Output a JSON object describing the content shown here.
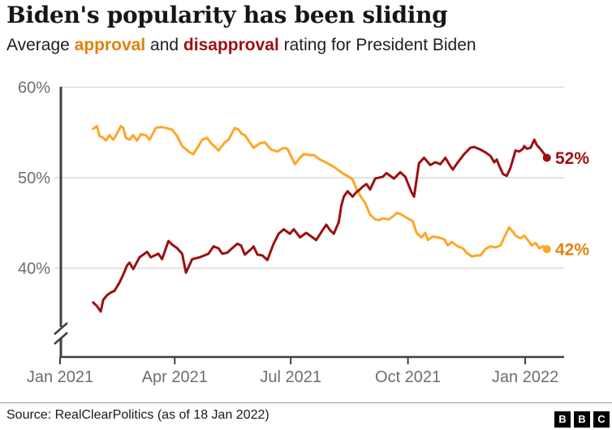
{
  "header": {
    "title": "Biden's popularity has been sliding",
    "subtitle": {
      "prefix": "Average ",
      "approval_word": "approval",
      "middle": " and ",
      "disapproval_word": "disapproval",
      "suffix": " rating for President Biden"
    }
  },
  "chart_data": {
    "type": "line",
    "title": "Biden's popularity has been sliding",
    "subtitle": "Average approval and disapproval rating for President Biden",
    "xlabel": "",
    "ylabel": "",
    "x_unit": "days since 27 Jan 2021 (series start), ending 18 Jan 2022",
    "ylim": [
      35,
      60
    ],
    "y_axis_break": true,
    "grid": true,
    "legend_position": "inline-subtitle-and-end-labels",
    "colors": {
      "approval_line": "#ffa626",
      "approval_text": "#e0830c",
      "disapproval_line": "#9b1012",
      "disapproval_text": "#9b0f12",
      "axis": "#3f3f42",
      "gridline": "#d9d9d9",
      "axis_label": "#6e6e6e"
    },
    "y_ticks": [
      {
        "label": "60%",
        "value": 60
      },
      {
        "label": "50%",
        "value": 50
      },
      {
        "label": "40%",
        "value": 40
      }
    ],
    "x_ticks": [
      {
        "label": "Jan 2021",
        "day": 0
      },
      {
        "label": "Apr 2021",
        "day": 90
      },
      {
        "label": "Jul 2021",
        "day": 181
      },
      {
        "label": "Oct 2021",
        "day": 273
      },
      {
        "label": "Jan 2022",
        "day": 365
      }
    ],
    "series": [
      {
        "name": "Approval",
        "color": "#ffa626",
        "label_color": "#e0830c",
        "end_label": "42%",
        "end_value": 42,
        "points": [
          [
            0,
            55.4
          ],
          [
            3,
            55.7
          ],
          [
            5,
            54.6
          ],
          [
            8,
            54.4
          ],
          [
            10,
            54.1
          ],
          [
            13,
            54.7
          ],
          [
            16,
            54.2
          ],
          [
            18,
            54.6
          ],
          [
            22,
            55.7
          ],
          [
            24,
            55.5
          ],
          [
            26,
            54.4
          ],
          [
            29,
            54.2
          ],
          [
            32,
            54.7
          ],
          [
            35,
            54.1
          ],
          [
            38,
            54.8
          ],
          [
            42,
            54.7
          ],
          [
            45,
            54.2
          ],
          [
            50,
            55.5
          ],
          [
            54,
            55.6
          ],
          [
            58,
            55.5
          ],
          [
            63,
            55.3
          ],
          [
            67,
            54.6
          ],
          [
            71,
            53.5
          ],
          [
            77,
            52.8
          ],
          [
            80,
            52.6
          ],
          [
            84,
            53.5
          ],
          [
            87,
            54.2
          ],
          [
            91,
            54.4
          ],
          [
            94,
            53.8
          ],
          [
            98,
            53.3
          ],
          [
            100,
            53.0
          ],
          [
            105,
            53.9
          ],
          [
            108,
            54.2
          ],
          [
            113,
            55.5
          ],
          [
            116,
            55.3
          ],
          [
            119,
            54.8
          ],
          [
            121,
            54.7
          ],
          [
            128,
            53.3
          ],
          [
            133,
            53.8
          ],
          [
            137,
            53.9
          ],
          [
            142,
            53.1
          ],
          [
            147,
            52.9
          ],
          [
            152,
            53.3
          ],
          [
            155,
            53.2
          ],
          [
            161,
            51.5
          ],
          [
            165,
            52.2
          ],
          [
            168,
            52.6
          ],
          [
            173,
            52.5
          ],
          [
            176,
            52.5
          ],
          [
            181,
            52.0
          ],
          [
            184,
            51.8
          ],
          [
            188,
            51.5
          ],
          [
            192,
            51.2
          ],
          [
            196,
            50.8
          ],
          [
            200,
            50.4
          ],
          [
            204,
            50.1
          ],
          [
            207,
            49.8
          ],
          [
            210,
            48.8
          ],
          [
            214,
            47.8
          ],
          [
            217,
            47.2
          ],
          [
            221,
            45.9
          ],
          [
            225,
            45.4
          ],
          [
            228,
            45.3
          ],
          [
            231,
            45.5
          ],
          [
            236,
            45.4
          ],
          [
            240,
            45.8
          ],
          [
            242,
            46.1
          ],
          [
            245,
            46.0
          ],
          [
            251,
            45.5
          ],
          [
            255,
            45.2
          ],
          [
            258,
            43.9
          ],
          [
            262,
            43.4
          ],
          [
            265,
            43.9
          ],
          [
            267,
            43.1
          ],
          [
            271,
            43.5
          ],
          [
            275,
            43.4
          ],
          [
            280,
            43.2
          ],
          [
            283,
            42.5
          ],
          [
            286,
            42.9
          ],
          [
            291,
            42.4
          ],
          [
            295,
            42.2
          ],
          [
            298,
            41.7
          ],
          [
            302,
            41.3
          ],
          [
            306,
            41.4
          ],
          [
            309,
            41.4
          ],
          [
            313,
            42.1
          ],
          [
            317,
            42.4
          ],
          [
            321,
            42.3
          ],
          [
            325,
            42.5
          ],
          [
            328,
            43.4
          ],
          [
            332,
            44.5
          ],
          [
            335,
            44.0
          ],
          [
            337,
            43.6
          ],
          [
            341,
            43.3
          ],
          [
            344,
            43.6
          ],
          [
            348,
            42.9
          ],
          [
            350,
            42.5
          ],
          [
            353,
            42.8
          ],
          [
            356,
            42.2
          ],
          [
            359,
            42.4
          ],
          [
            362,
            42.1
          ]
        ]
      },
      {
        "name": "Disapproval",
        "color": "#9b1012",
        "label_color": "#9b0f12",
        "end_label": "52%",
        "end_value": 52,
        "points": [
          [
            0,
            36.2
          ],
          [
            3,
            35.8
          ],
          [
            6,
            35.2
          ],
          [
            8,
            36.5
          ],
          [
            11,
            37.0
          ],
          [
            14,
            37.3
          ],
          [
            17,
            37.5
          ],
          [
            21,
            38.4
          ],
          [
            24,
            39.3
          ],
          [
            27,
            40.3
          ],
          [
            29,
            40.6
          ],
          [
            32,
            39.9
          ],
          [
            37,
            41.2
          ],
          [
            40,
            41.5
          ],
          [
            43,
            41.8
          ],
          [
            46,
            41.2
          ],
          [
            49,
            41.4
          ],
          [
            52,
            41.6
          ],
          [
            55,
            41.0
          ],
          [
            60,
            43.0
          ],
          [
            63,
            42.6
          ],
          [
            67,
            42.2
          ],
          [
            71,
            41.6
          ],
          [
            74,
            39.5
          ],
          [
            79,
            41.0
          ],
          [
            85,
            41.2
          ],
          [
            92,
            41.6
          ],
          [
            96,
            42.4
          ],
          [
            100,
            42.2
          ],
          [
            103,
            41.6
          ],
          [
            107,
            41.7
          ],
          [
            110,
            42.1
          ],
          [
            115,
            42.7
          ],
          [
            118,
            42.5
          ],
          [
            121,
            41.5
          ],
          [
            126,
            42.1
          ],
          [
            128,
            42.4
          ],
          [
            131,
            41.5
          ],
          [
            135,
            41.4
          ],
          [
            139,
            40.9
          ],
          [
            144,
            42.7
          ],
          [
            148,
            43.8
          ],
          [
            152,
            44.3
          ],
          [
            157,
            43.8
          ],
          [
            160,
            44.3
          ],
          [
            165,
            43.4
          ],
          [
            170,
            43.9
          ],
          [
            174,
            43.5
          ],
          [
            178,
            43.1
          ],
          [
            183,
            44.2
          ],
          [
            186,
            44.8
          ],
          [
            189,
            44.2
          ],
          [
            192,
            43.8
          ],
          [
            196,
            45.1
          ],
          [
            198,
            46.9
          ],
          [
            200,
            47.9
          ],
          [
            203,
            48.5
          ],
          [
            207,
            47.9
          ],
          [
            210,
            48.4
          ],
          [
            212,
            48.6
          ],
          [
            215,
            49.0
          ],
          [
            218,
            49.3
          ],
          [
            221,
            48.7
          ],
          [
            225,
            49.9
          ],
          [
            231,
            50.1
          ],
          [
            234,
            50.5
          ],
          [
            240,
            49.9
          ],
          [
            245,
            50.6
          ],
          [
            249,
            50.1
          ],
          [
            254,
            48.4
          ],
          [
            256,
            47.9
          ],
          [
            260,
            51.6
          ],
          [
            264,
            52.2
          ],
          [
            269,
            51.4
          ],
          [
            273,
            51.7
          ],
          [
            277,
            51.5
          ],
          [
            281,
            52.2
          ],
          [
            284,
            51.5
          ],
          [
            287,
            50.9
          ],
          [
            291,
            51.7
          ],
          [
            296,
            52.6
          ],
          [
            301,
            53.3
          ],
          [
            304,
            53.4
          ],
          [
            309,
            53.1
          ],
          [
            313,
            52.8
          ],
          [
            317,
            52.4
          ],
          [
            320,
            51.7
          ],
          [
            322,
            52.0
          ],
          [
            324,
            51.3
          ],
          [
            327,
            50.4
          ],
          [
            330,
            50.2
          ],
          [
            333,
            51.1
          ],
          [
            337,
            53.0
          ],
          [
            340,
            52.9
          ],
          [
            343,
            53.2
          ],
          [
            344,
            53.5
          ],
          [
            346,
            53.2
          ],
          [
            349,
            53.3
          ],
          [
            352,
            54.2
          ],
          [
            354,
            53.6
          ],
          [
            356,
            53.3
          ],
          [
            359,
            52.8
          ],
          [
            362,
            52.2
          ]
        ]
      }
    ]
  },
  "footer": {
    "source": "Source: RealClearPolitics (as of 18 Jan 2022)",
    "logo": [
      "B",
      "B",
      "C"
    ]
  }
}
